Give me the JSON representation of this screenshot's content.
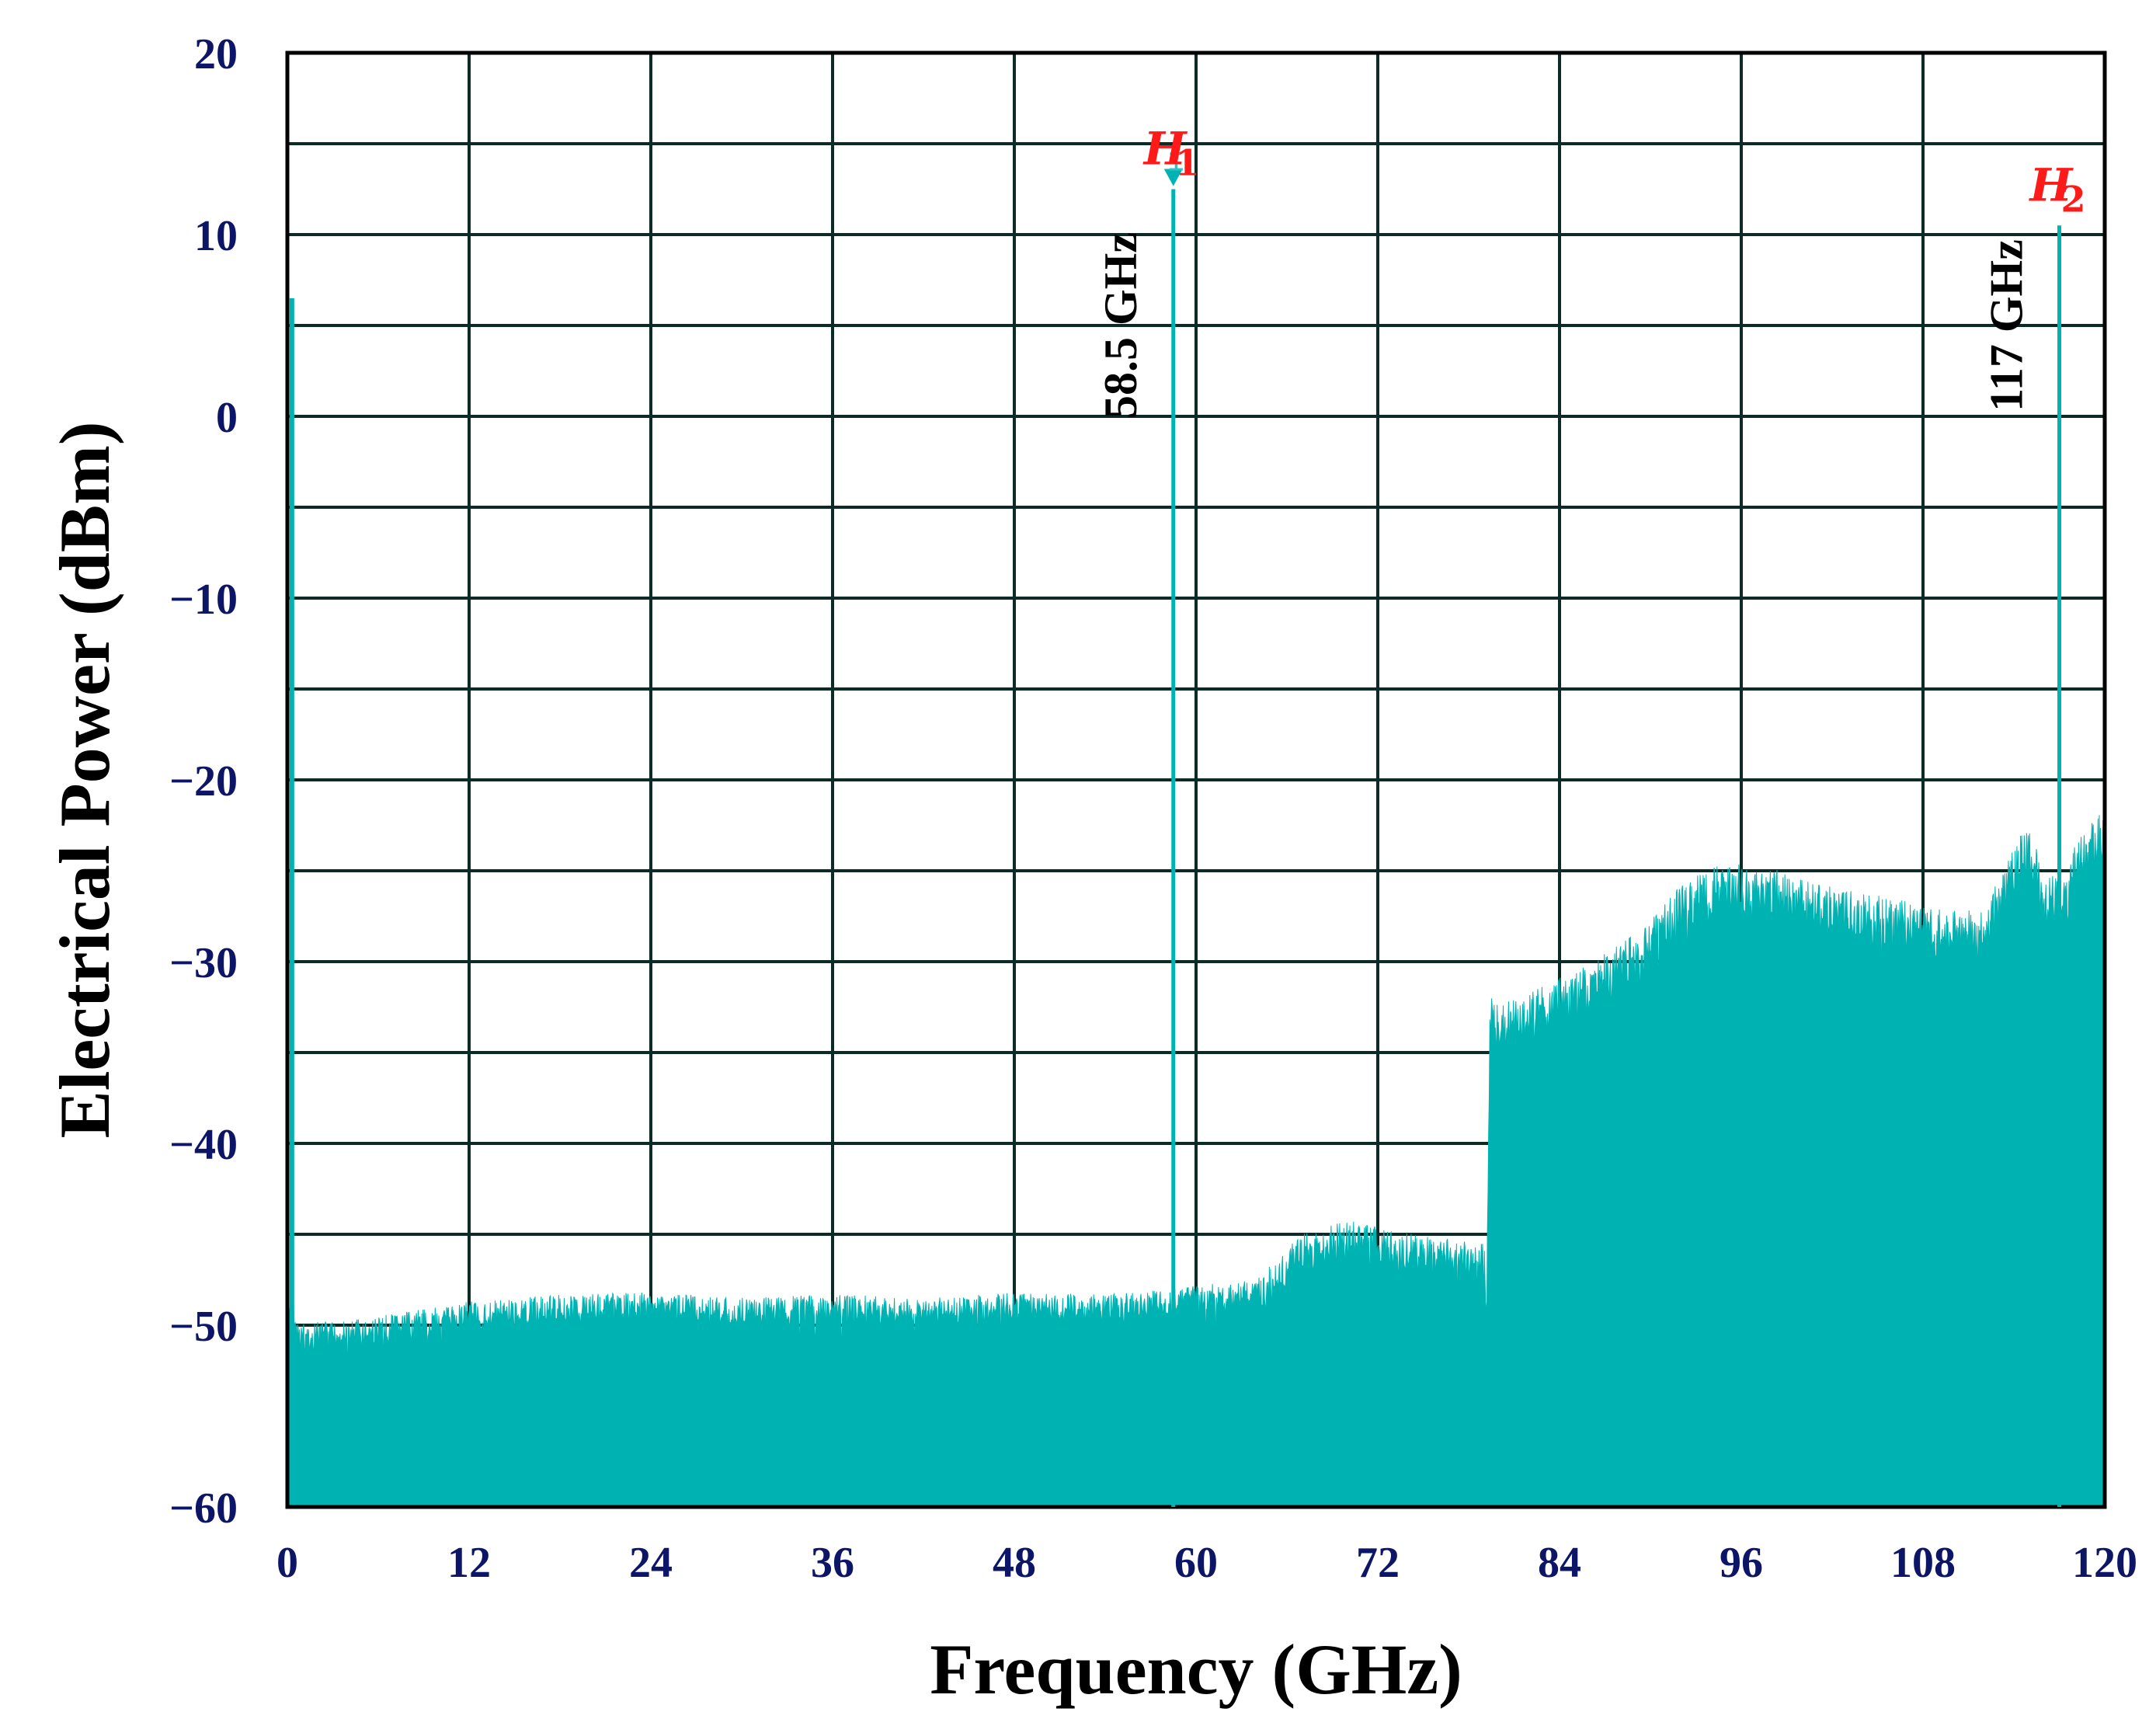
{
  "chart_data": {
    "type": "area",
    "title": "",
    "xlabel": "Frequency (GHz)",
    "ylabel": "Electrical Power (dBm)",
    "xlim": [
      0,
      120
    ],
    "ylim": [
      -60,
      20
    ],
    "xticks": [
      "0",
      "12",
      "24",
      "36",
      "48",
      "60",
      "72",
      "84",
      "96",
      "108",
      "120"
    ],
    "yticks": [
      "20",
      "10",
      "0",
      "−10",
      "−20",
      "−30",
      "−40",
      "−50",
      "−60"
    ],
    "grid": true,
    "color": "#00b3b3",
    "series": [
      {
        "values_description": "noise floor envelope",
        "x": [
          0,
          0.3,
          0.5,
          1,
          3,
          6,
          10,
          12,
          18,
          24,
          30,
          36,
          42,
          48,
          54,
          58,
          60,
          63,
          64.5,
          65,
          67,
          70,
          73,
          76,
          79,
          79.2,
          79.4,
          80,
          82,
          85,
          88,
          90,
          92,
          94,
          96,
          98,
          100,
          102,
          104,
          106,
          108,
          110,
          112,
          113,
          114,
          115,
          116,
          117.5,
          118,
          120
        ],
        "y": [
          -50,
          -47,
          -49.5,
          -49.8,
          -49.8,
          -49.5,
          -49,
          -48.7,
          -48.3,
          -48.2,
          -48.5,
          -48.3,
          -48.5,
          -48.2,
          -48.3,
          -48,
          -47.8,
          -47.6,
          -47.3,
          -46.5,
          -45,
          -44.2,
          -44.8,
          -45.2,
          -45.5,
          -47.5,
          -31.5,
          -32.5,
          -31.5,
          -30.5,
          -29,
          -27.5,
          -25.8,
          -24.8,
          -24.5,
          -24.8,
          -25.2,
          -25.8,
          -26.2,
          -26.5,
          -26.8,
          -27.2,
          -27,
          -25.5,
          -23.5,
          -22.5,
          -25,
          -25.5,
          -23.5,
          -21.5
        ]
      }
    ],
    "peaks": [
      {
        "marker": "H",
        "subscript": "1",
        "marker_number": "1",
        "x": 58.5,
        "y": 12.5,
        "label": "58.5 GHz"
      },
      {
        "marker": "H",
        "subscript": "2",
        "x": 117,
        "y": 10.5,
        "label": "117 GHz"
      }
    ],
    "dc_spike": {
      "x": 0.3,
      "y": 6.5
    }
  }
}
